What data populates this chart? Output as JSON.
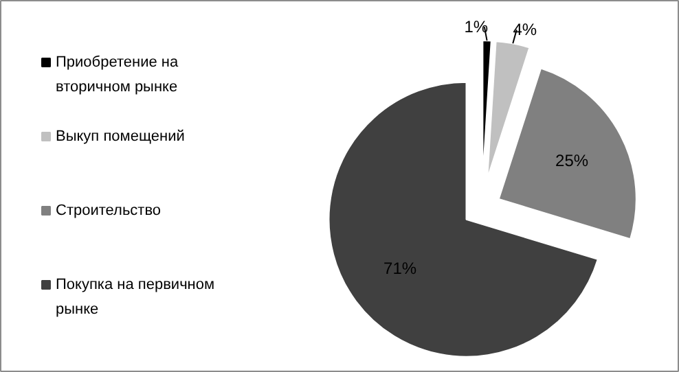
{
  "chart_data": {
    "type": "pie",
    "categories": [
      "Приобретение  на вторичном рынке",
      "Выкуп помещений",
      "Строительство",
      "Покупка на первичном рынке"
    ],
    "values": [
      1,
      4,
      25,
      71
    ],
    "colors": [
      "#000000",
      "#c0c0c0",
      "#808080",
      "#404040"
    ],
    "value_labels": [
      "1%",
      "4%",
      "25%",
      "71%"
    ],
    "legend": "left"
  }
}
